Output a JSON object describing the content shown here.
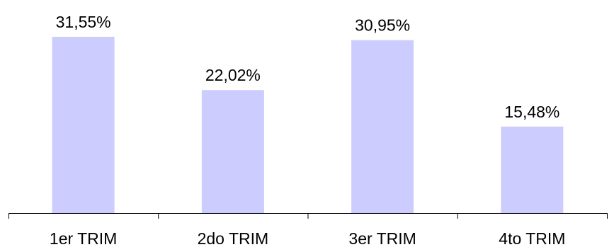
{
  "chart_data": {
    "type": "bar",
    "categories": [
      "1er TRIM",
      "2do TRIM",
      "3er TRIM",
      "4to TRIM"
    ],
    "values": [
      31.55,
      22.02,
      30.95,
      15.48
    ],
    "data_labels": [
      "31,55%",
      "22,02%",
      "30,95%",
      "15,48%"
    ],
    "title": "",
    "xlabel": "",
    "ylabel": "",
    "ylim": [
      0,
      31.55
    ],
    "grid": false,
    "legend": "none",
    "bar_color": "#CCCCFF",
    "axis_color": "#000000"
  }
}
